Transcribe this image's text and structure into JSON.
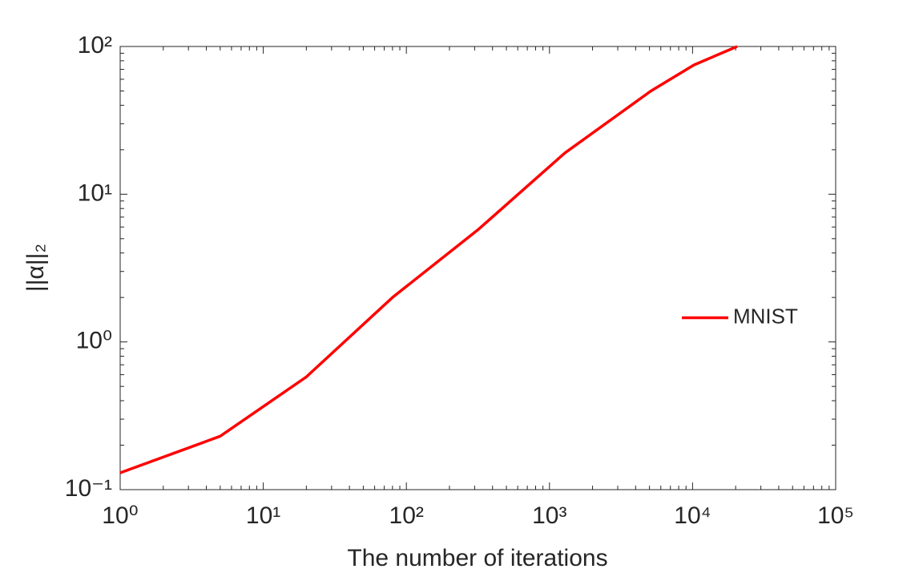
{
  "chart_data": {
    "type": "line",
    "xlabel": "The number of iterations",
    "ylabel": "||α||₂",
    "x": [
      1,
      5,
      20,
      80,
      320,
      1280,
      5120,
      10240,
      20480
    ],
    "series": [
      {
        "name": "MNIST",
        "color": "#ff0000",
        "values": [
          0.13,
          0.23,
          0.58,
          2,
          5.8,
          19,
          50,
          75,
          100
        ]
      }
    ],
    "xscale": "log",
    "yscale": "log",
    "xlim": [
      1,
      100000
    ],
    "ylim": [
      0.1,
      100
    ],
    "xticks": [
      {
        "value": 1,
        "label": "10⁰"
      },
      {
        "value": 10,
        "label": "10¹"
      },
      {
        "value": 100,
        "label": "10²"
      },
      {
        "value": 1000,
        "label": "10³"
      },
      {
        "value": 10000,
        "label": "10⁴"
      },
      {
        "value": 100000,
        "label": "10⁵"
      }
    ],
    "yticks": [
      {
        "value": 0.1,
        "label": "10⁻¹"
      },
      {
        "value": 1,
        "label": "10⁰"
      },
      {
        "value": 10,
        "label": "10¹"
      },
      {
        "value": 100,
        "label": "10²"
      }
    ],
    "grid": false,
    "legend": "right"
  }
}
